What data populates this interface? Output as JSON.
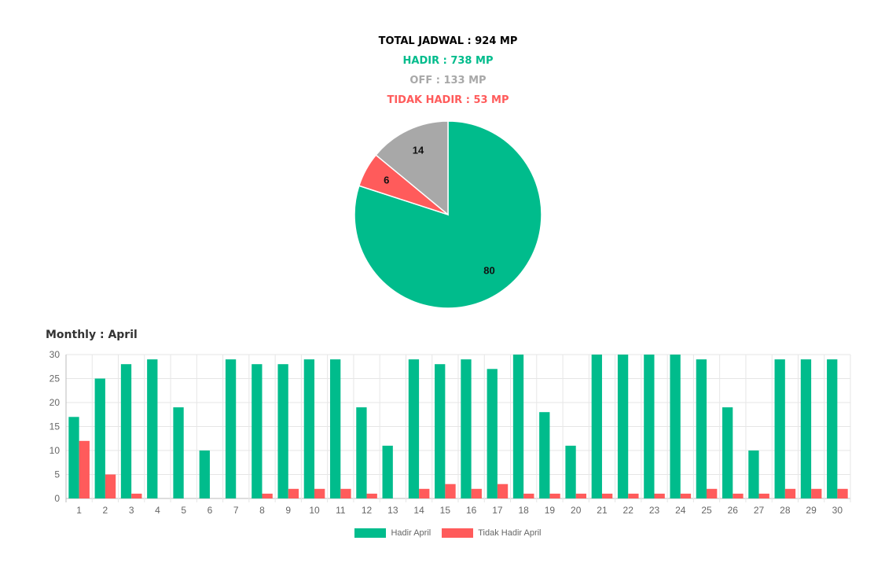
{
  "summary": {
    "total": "TOTAL JADWAL : 924 MP",
    "hadir": "HADIR : 738 MP",
    "off": "OFF : 133 MP",
    "tidak_hadir": "TIDAK HADIR : 53 MP"
  },
  "colors": {
    "hadir": "#00bc8c",
    "off": "#a8a8a8",
    "tidak_hadir": "#ff5b5b",
    "total": "#000000"
  },
  "monthly_title": "Monthly : April",
  "legend": {
    "hadir": "Hadir April",
    "tidak_hadir": "Tidak Hadir April"
  },
  "chart_data": [
    {
      "type": "pie",
      "slices": [
        {
          "label": "80",
          "value": 80,
          "color": "#00bc8c"
        },
        {
          "label": "6",
          "value": 6,
          "color": "#ff5b5b"
        },
        {
          "label": "14",
          "value": 14,
          "color": "#a8a8a8"
        }
      ]
    },
    {
      "type": "bar",
      "categories": [
        "1",
        "2",
        "3",
        "4",
        "5",
        "6",
        "7",
        "8",
        "9",
        "10",
        "11",
        "12",
        "13",
        "14",
        "15",
        "16",
        "17",
        "18",
        "19",
        "20",
        "21",
        "22",
        "23",
        "24",
        "25",
        "26",
        "27",
        "28",
        "29",
        "30"
      ],
      "series": [
        {
          "name": "Hadir April",
          "color": "#00bc8c",
          "values": [
            17,
            25,
            28,
            29,
            19,
            10,
            29,
            28,
            28,
            29,
            29,
            19,
            11,
            29,
            28,
            29,
            27,
            30,
            18,
            11,
            30,
            30,
            30,
            30,
            29,
            19,
            10,
            29,
            29,
            29
          ]
        },
        {
          "name": "Tidak Hadir April",
          "color": "#ff5b5b",
          "values": [
            12,
            5,
            1,
            0,
            0,
            0,
            0,
            1,
            2,
            2,
            2,
            1,
            0,
            2,
            3,
            2,
            3,
            1,
            1,
            1,
            1,
            1,
            1,
            1,
            2,
            1,
            1,
            2,
            2,
            2
          ]
        }
      ],
      "ylim": [
        0,
        30
      ],
      "yticks": [
        0,
        5,
        10,
        15,
        20,
        25,
        30
      ],
      "grid": true,
      "legend_position": "bottom"
    }
  ]
}
